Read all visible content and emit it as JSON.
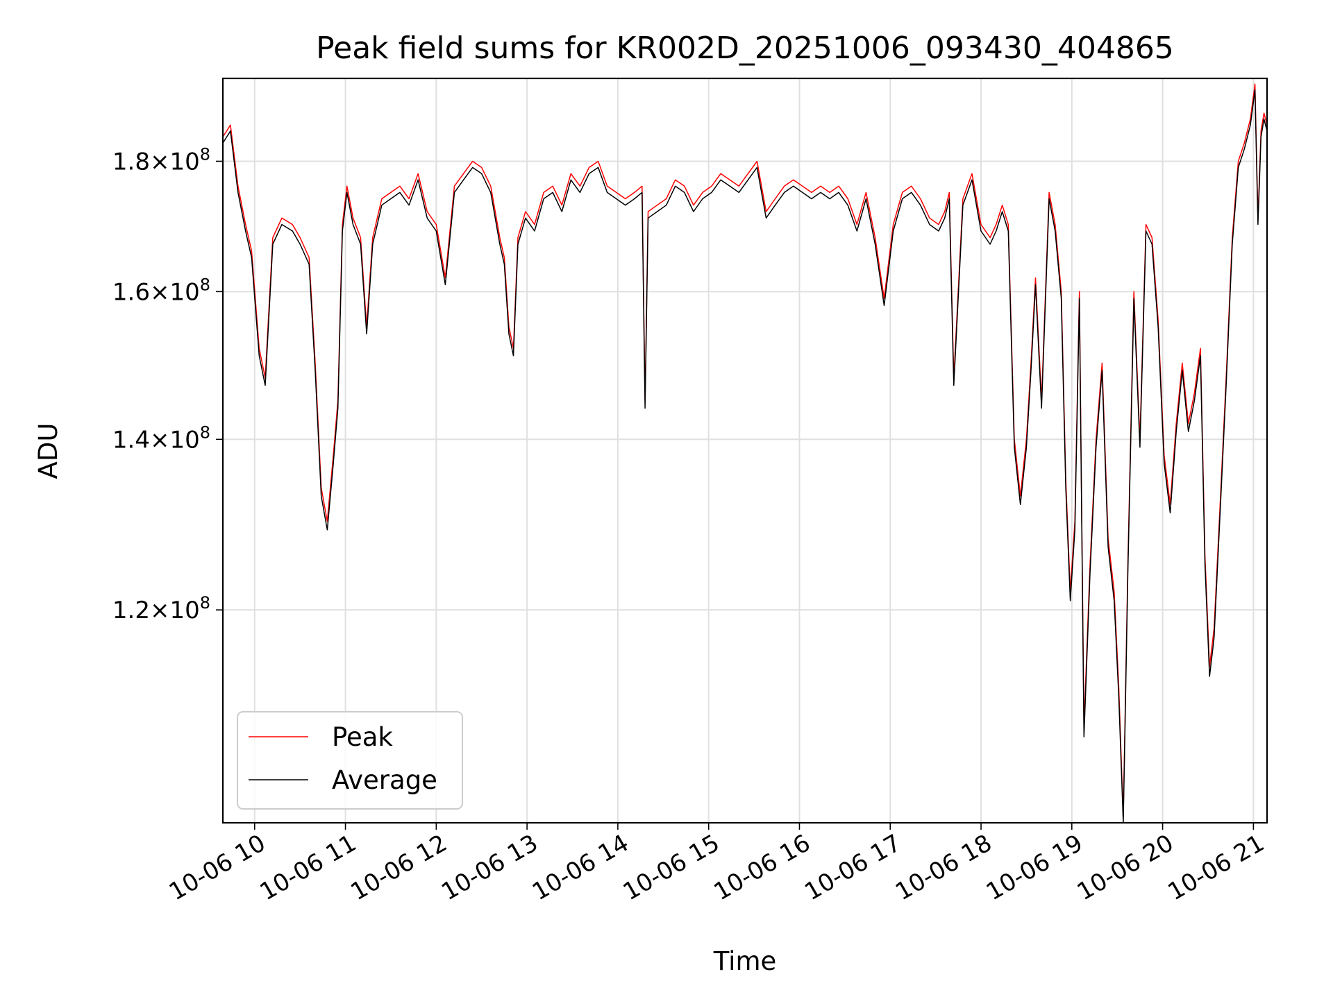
{
  "chart_data": {
    "type": "line",
    "title": "Peak field sums for KR002D_20251006_093430_404865",
    "xlabel": "Time",
    "ylabel": "ADU",
    "y_scale": "log",
    "ylim": [
      99000000,
      194000000
    ],
    "xlim": [
      "2025-10-06 09:39",
      "2025-10-06 21:09"
    ],
    "grid": true,
    "legend_position": "lower-left",
    "x_ticks": [
      {
        "t": "2025-10-06 10:00",
        "label": "10-06 10"
      },
      {
        "t": "2025-10-06 11:00",
        "label": "10-06 11"
      },
      {
        "t": "2025-10-06 12:00",
        "label": "10-06 12"
      },
      {
        "t": "2025-10-06 13:00",
        "label": "10-06 13"
      },
      {
        "t": "2025-10-06 14:00",
        "label": "10-06 14"
      },
      {
        "t": "2025-10-06 15:00",
        "label": "10-06 15"
      },
      {
        "t": "2025-10-06 16:00",
        "label": "10-06 16"
      },
      {
        "t": "2025-10-06 17:00",
        "label": "10-06 17"
      },
      {
        "t": "2025-10-06 18:00",
        "label": "10-06 18"
      },
      {
        "t": "2025-10-06 19:00",
        "label": "10-06 19"
      },
      {
        "t": "2025-10-06 20:00",
        "label": "10-06 20"
      },
      {
        "t": "2025-10-06 21:00",
        "label": "10-06 21"
      }
    ],
    "y_ticks": [
      {
        "value": 120000000,
        "mantissa": "1.2",
        "exponent": "8"
      },
      {
        "value": 140000000,
        "mantissa": "1.4",
        "exponent": "8"
      },
      {
        "value": 160000000,
        "mantissa": "1.6",
        "exponent": "8"
      },
      {
        "value": 180000000,
        "mantissa": "1.8",
        "exponent": "8"
      }
    ],
    "series": [
      {
        "name": "Peak",
        "color": "#ff0000",
        "x": [
          "2025-10-06 09:39",
          "2025-10-06 09:44",
          "2025-10-06 09:49",
          "2025-10-06 09:54",
          "2025-10-06 09:58",
          "2025-10-06 10:03",
          "2025-10-06 10:07",
          "2025-10-06 10:12",
          "2025-10-06 10:18",
          "2025-10-06 10:25",
          "2025-10-06 10:30",
          "2025-10-06 10:36",
          "2025-10-06 10:40",
          "2025-10-06 10:44",
          "2025-10-06 10:48",
          "2025-10-06 10:52",
          "2025-10-06 10:55",
          "2025-10-06 10:58",
          "2025-10-06 11:01",
          "2025-10-06 11:05",
          "2025-10-06 11:10",
          "2025-10-06 11:14",
          "2025-10-06 11:18",
          "2025-10-06 11:24",
          "2025-10-06 11:30",
          "2025-10-06 11:36",
          "2025-10-06 11:42",
          "2025-10-06 11:48",
          "2025-10-06 11:54",
          "2025-10-06 12:00",
          "2025-10-06 12:06",
          "2025-10-06 12:12",
          "2025-10-06 12:18",
          "2025-10-06 12:24",
          "2025-10-06 12:30",
          "2025-10-06 12:36",
          "2025-10-06 12:42",
          "2025-10-06 12:45",
          "2025-10-06 12:48",
          "2025-10-06 12:51",
          "2025-10-06 12:54",
          "2025-10-06 12:59",
          "2025-10-06 13:05",
          "2025-10-06 13:11",
          "2025-10-06 13:17",
          "2025-10-06 13:23",
          "2025-10-06 13:29",
          "2025-10-06 13:35",
          "2025-10-06 13:41",
          "2025-10-06 13:47",
          "2025-10-06 13:53",
          "2025-10-06 13:59",
          "2025-10-06 14:05",
          "2025-10-06 14:11",
          "2025-10-06 14:16",
          "2025-10-06 14:18",
          "2025-10-06 14:20",
          "2025-10-06 14:26",
          "2025-10-06 14:32",
          "2025-10-06 14:38",
          "2025-10-06 14:44",
          "2025-10-06 14:50",
          "2025-10-06 14:56",
          "2025-10-06 15:02",
          "2025-10-06 15:08",
          "2025-10-06 15:14",
          "2025-10-06 15:20",
          "2025-10-06 15:26",
          "2025-10-06 15:32",
          "2025-10-06 15:38",
          "2025-10-06 15:44",
          "2025-10-06 15:50",
          "2025-10-06 15:56",
          "2025-10-06 16:02",
          "2025-10-06 16:08",
          "2025-10-06 16:14",
          "2025-10-06 16:20",
          "2025-10-06 16:26",
          "2025-10-06 16:32",
          "2025-10-06 16:38",
          "2025-10-06 16:44",
          "2025-10-06 16:50",
          "2025-10-06 16:56",
          "2025-10-06 17:02",
          "2025-10-06 17:08",
          "2025-10-06 17:14",
          "2025-10-06 17:20",
          "2025-10-06 17:26",
          "2025-10-06 17:32",
          "2025-10-06 17:36",
          "2025-10-06 17:39",
          "2025-10-06 17:42",
          "2025-10-06 17:48",
          "2025-10-06 17:54",
          "2025-10-06 18:00",
          "2025-10-06 18:06",
          "2025-10-06 18:10",
          "2025-10-06 18:14",
          "2025-10-06 18:18",
          "2025-10-06 18:22",
          "2025-10-06 18:26",
          "2025-10-06 18:30",
          "2025-10-06 18:33",
          "2025-10-06 18:36",
          "2025-10-06 18:40",
          "2025-10-06 18:45",
          "2025-10-06 18:49",
          "2025-10-06 18:53",
          "2025-10-06 18:56",
          "2025-10-06 18:59",
          "2025-10-06 19:02",
          "2025-10-06 19:05",
          "2025-10-06 19:08",
          "2025-10-06 19:12",
          "2025-10-06 19:16",
          "2025-10-06 19:20",
          "2025-10-06 19:24",
          "2025-10-06 19:28",
          "2025-10-06 19:31",
          "2025-10-06 19:34",
          "2025-10-06 19:37",
          "2025-10-06 19:41",
          "2025-10-06 19:45",
          "2025-10-06 19:49",
          "2025-10-06 19:53",
          "2025-10-06 19:57",
          "2025-10-06 20:01",
          "2025-10-06 20:05",
          "2025-10-06 20:09",
          "2025-10-06 20:13",
          "2025-10-06 20:17",
          "2025-10-06 20:21",
          "2025-10-06 20:25",
          "2025-10-06 20:28",
          "2025-10-06 20:31",
          "2025-10-06 20:34",
          "2025-10-06 20:38",
          "2025-10-06 20:42",
          "2025-10-06 20:46",
          "2025-10-06 20:50",
          "2025-10-06 20:54",
          "2025-10-06 20:58",
          "2025-10-06 21:01",
          "2025-10-06 21:03",
          "2025-10-06 21:05",
          "2025-10-06 21:07",
          "2025-10-06 21:09"
        ],
        "values": [
          184000000,
          186000000,
          176000000,
          170000000,
          166000000,
          152000000,
          148000000,
          168000000,
          171000000,
          170000000,
          168000000,
          165000000,
          150000000,
          134000000,
          130000000,
          138000000,
          145000000,
          170000000,
          176000000,
          171000000,
          168000000,
          155000000,
          168000000,
          174000000,
          175000000,
          176000000,
          174000000,
          178000000,
          172000000,
          170000000,
          162000000,
          176000000,
          178000000,
          180000000,
          179000000,
          176000000,
          168000000,
          165000000,
          155000000,
          152000000,
          168000000,
          172000000,
          170000000,
          175000000,
          176000000,
          173000000,
          178000000,
          176000000,
          179000000,
          180000000,
          176000000,
          175000000,
          174000000,
          175000000,
          176000000,
          145000000,
          172000000,
          173000000,
          174000000,
          177000000,
          176000000,
          173000000,
          175000000,
          176000000,
          178000000,
          177000000,
          176000000,
          178000000,
          180000000,
          172000000,
          174000000,
          176000000,
          177000000,
          176000000,
          175000000,
          176000000,
          175000000,
          176000000,
          174000000,
          170000000,
          175000000,
          168000000,
          159000000,
          170000000,
          175000000,
          176000000,
          174000000,
          171000000,
          170000000,
          172000000,
          175000000,
          148000000,
          174000000,
          178000000,
          170000000,
          168000000,
          170000000,
          173000000,
          170000000,
          140000000,
          133000000,
          140000000,
          150000000,
          162000000,
          145000000,
          175000000,
          170000000,
          160000000,
          135000000,
          122000000,
          130000000,
          160000000,
          108000000,
          125000000,
          140000000,
          150000000,
          128000000,
          122000000,
          112000000,
          99500000,
          125000000,
          160000000,
          140000000,
          170000000,
          168000000,
          156000000,
          138000000,
          132000000,
          142000000,
          150000000,
          142000000,
          146000000,
          152000000,
          126000000,
          114000000,
          118000000,
          132000000,
          148000000,
          168000000,
          180000000,
          183000000,
          187000000,
          193000000,
          171000000,
          185000000,
          188000000,
          186000000
        ]
      },
      {
        "name": "Average",
        "color": "#000000",
        "x": [
          "2025-10-06 09:39",
          "2025-10-06 09:44",
          "2025-10-06 09:49",
          "2025-10-06 09:54",
          "2025-10-06 09:58",
          "2025-10-06 10:03",
          "2025-10-06 10:07",
          "2025-10-06 10:12",
          "2025-10-06 10:18",
          "2025-10-06 10:25",
          "2025-10-06 10:30",
          "2025-10-06 10:36",
          "2025-10-06 10:40",
          "2025-10-06 10:44",
          "2025-10-06 10:48",
          "2025-10-06 10:52",
          "2025-10-06 10:55",
          "2025-10-06 10:58",
          "2025-10-06 11:01",
          "2025-10-06 11:05",
          "2025-10-06 11:10",
          "2025-10-06 11:14",
          "2025-10-06 11:18",
          "2025-10-06 11:24",
          "2025-10-06 11:30",
          "2025-10-06 11:36",
          "2025-10-06 11:42",
          "2025-10-06 11:48",
          "2025-10-06 11:54",
          "2025-10-06 12:00",
          "2025-10-06 12:06",
          "2025-10-06 12:12",
          "2025-10-06 12:18",
          "2025-10-06 12:24",
          "2025-10-06 12:30",
          "2025-10-06 12:36",
          "2025-10-06 12:42",
          "2025-10-06 12:45",
          "2025-10-06 12:48",
          "2025-10-06 12:51",
          "2025-10-06 12:54",
          "2025-10-06 12:59",
          "2025-10-06 13:05",
          "2025-10-06 13:11",
          "2025-10-06 13:17",
          "2025-10-06 13:23",
          "2025-10-06 13:29",
          "2025-10-06 13:35",
          "2025-10-06 13:41",
          "2025-10-06 13:47",
          "2025-10-06 13:53",
          "2025-10-06 13:59",
          "2025-10-06 14:05",
          "2025-10-06 14:11",
          "2025-10-06 14:16",
          "2025-10-06 14:18",
          "2025-10-06 14:20",
          "2025-10-06 14:26",
          "2025-10-06 14:32",
          "2025-10-06 14:38",
          "2025-10-06 14:44",
          "2025-10-06 14:50",
          "2025-10-06 14:56",
          "2025-10-06 15:02",
          "2025-10-06 15:08",
          "2025-10-06 15:14",
          "2025-10-06 15:20",
          "2025-10-06 15:26",
          "2025-10-06 15:32",
          "2025-10-06 15:38",
          "2025-10-06 15:44",
          "2025-10-06 15:50",
          "2025-10-06 15:56",
          "2025-10-06 16:02",
          "2025-10-06 16:08",
          "2025-10-06 16:14",
          "2025-10-06 16:20",
          "2025-10-06 16:26",
          "2025-10-06 16:32",
          "2025-10-06 16:38",
          "2025-10-06 16:44",
          "2025-10-06 16:50",
          "2025-10-06 16:56",
          "2025-10-06 17:02",
          "2025-10-06 17:08",
          "2025-10-06 17:14",
          "2025-10-06 17:20",
          "2025-10-06 17:26",
          "2025-10-06 17:32",
          "2025-10-06 17:36",
          "2025-10-06 17:39",
          "2025-10-06 17:42",
          "2025-10-06 17:48",
          "2025-10-06 17:54",
          "2025-10-06 18:00",
          "2025-10-06 18:06",
          "2025-10-06 18:10",
          "2025-10-06 18:14",
          "2025-10-06 18:18",
          "2025-10-06 18:22",
          "2025-10-06 18:26",
          "2025-10-06 18:30",
          "2025-10-06 18:33",
          "2025-10-06 18:36",
          "2025-10-06 18:40",
          "2025-10-06 18:45",
          "2025-10-06 18:49",
          "2025-10-06 18:53",
          "2025-10-06 18:56",
          "2025-10-06 18:59",
          "2025-10-06 19:02",
          "2025-10-06 19:05",
          "2025-10-06 19:08",
          "2025-10-06 19:12",
          "2025-10-06 19:16",
          "2025-10-06 19:20",
          "2025-10-06 19:24",
          "2025-10-06 19:28",
          "2025-10-06 19:31",
          "2025-10-06 19:34",
          "2025-10-06 19:37",
          "2025-10-06 19:41",
          "2025-10-06 19:45",
          "2025-10-06 19:49",
          "2025-10-06 19:53",
          "2025-10-06 19:57",
          "2025-10-06 20:01",
          "2025-10-06 20:05",
          "2025-10-06 20:09",
          "2025-10-06 20:13",
          "2025-10-06 20:17",
          "2025-10-06 20:21",
          "2025-10-06 20:25",
          "2025-10-06 20:28",
          "2025-10-06 20:31",
          "2025-10-06 20:34",
          "2025-10-06 20:38",
          "2025-10-06 20:42",
          "2025-10-06 20:46",
          "2025-10-06 20:50",
          "2025-10-06 20:54",
          "2025-10-06 20:58",
          "2025-10-06 21:01",
          "2025-10-06 21:03",
          "2025-10-06 21:05",
          "2025-10-06 21:07",
          "2025-10-06 21:09"
        ],
        "values": [
          183000000,
          185000000,
          175000000,
          169000000,
          165000000,
          151000000,
          147000000,
          167000000,
          170000000,
          169000000,
          167000000,
          164000000,
          149000000,
          133000000,
          129000000,
          137000000,
          144000000,
          169000000,
          175000000,
          170000000,
          167000000,
          154000000,
          167000000,
          173000000,
          174000000,
          175000000,
          173000000,
          177000000,
          171000000,
          169000000,
          161000000,
          175000000,
          177000000,
          179000000,
          178000000,
          175000000,
          167000000,
          164000000,
          154000000,
          151000000,
          167000000,
          171000000,
          169000000,
          174000000,
          175000000,
          172000000,
          177000000,
          175000000,
          178000000,
          179000000,
          175000000,
          174000000,
          173000000,
          174000000,
          175000000,
          144000000,
          171000000,
          172000000,
          173000000,
          176000000,
          175000000,
          172000000,
          174000000,
          175000000,
          177000000,
          176000000,
          175000000,
          177000000,
          179000000,
          171000000,
          173000000,
          175000000,
          176000000,
          175000000,
          174000000,
          175000000,
          174000000,
          175000000,
          173000000,
          169000000,
          174000000,
          167000000,
          158000000,
          169000000,
          174000000,
          175000000,
          173000000,
          170000000,
          169000000,
          171000000,
          174000000,
          147000000,
          173000000,
          177000000,
          169000000,
          167000000,
          169000000,
          172000000,
          169000000,
          139000000,
          132000000,
          139000000,
          149000000,
          161000000,
          144000000,
          174000000,
          169000000,
          159000000,
          134000000,
          121000000,
          129000000,
          159000000,
          107000000,
          124000000,
          139000000,
          149000000,
          127000000,
          121000000,
          111000000,
          99000000,
          124000000,
          159000000,
          139000000,
          169000000,
          167000000,
          155000000,
          137000000,
          131000000,
          141000000,
          149000000,
          141000000,
          145000000,
          151000000,
          125000000,
          113000000,
          117000000,
          131000000,
          147000000,
          167000000,
          179000000,
          182000000,
          186000000,
          192000000,
          170000000,
          184000000,
          187000000,
          185000000
        ]
      }
    ]
  }
}
